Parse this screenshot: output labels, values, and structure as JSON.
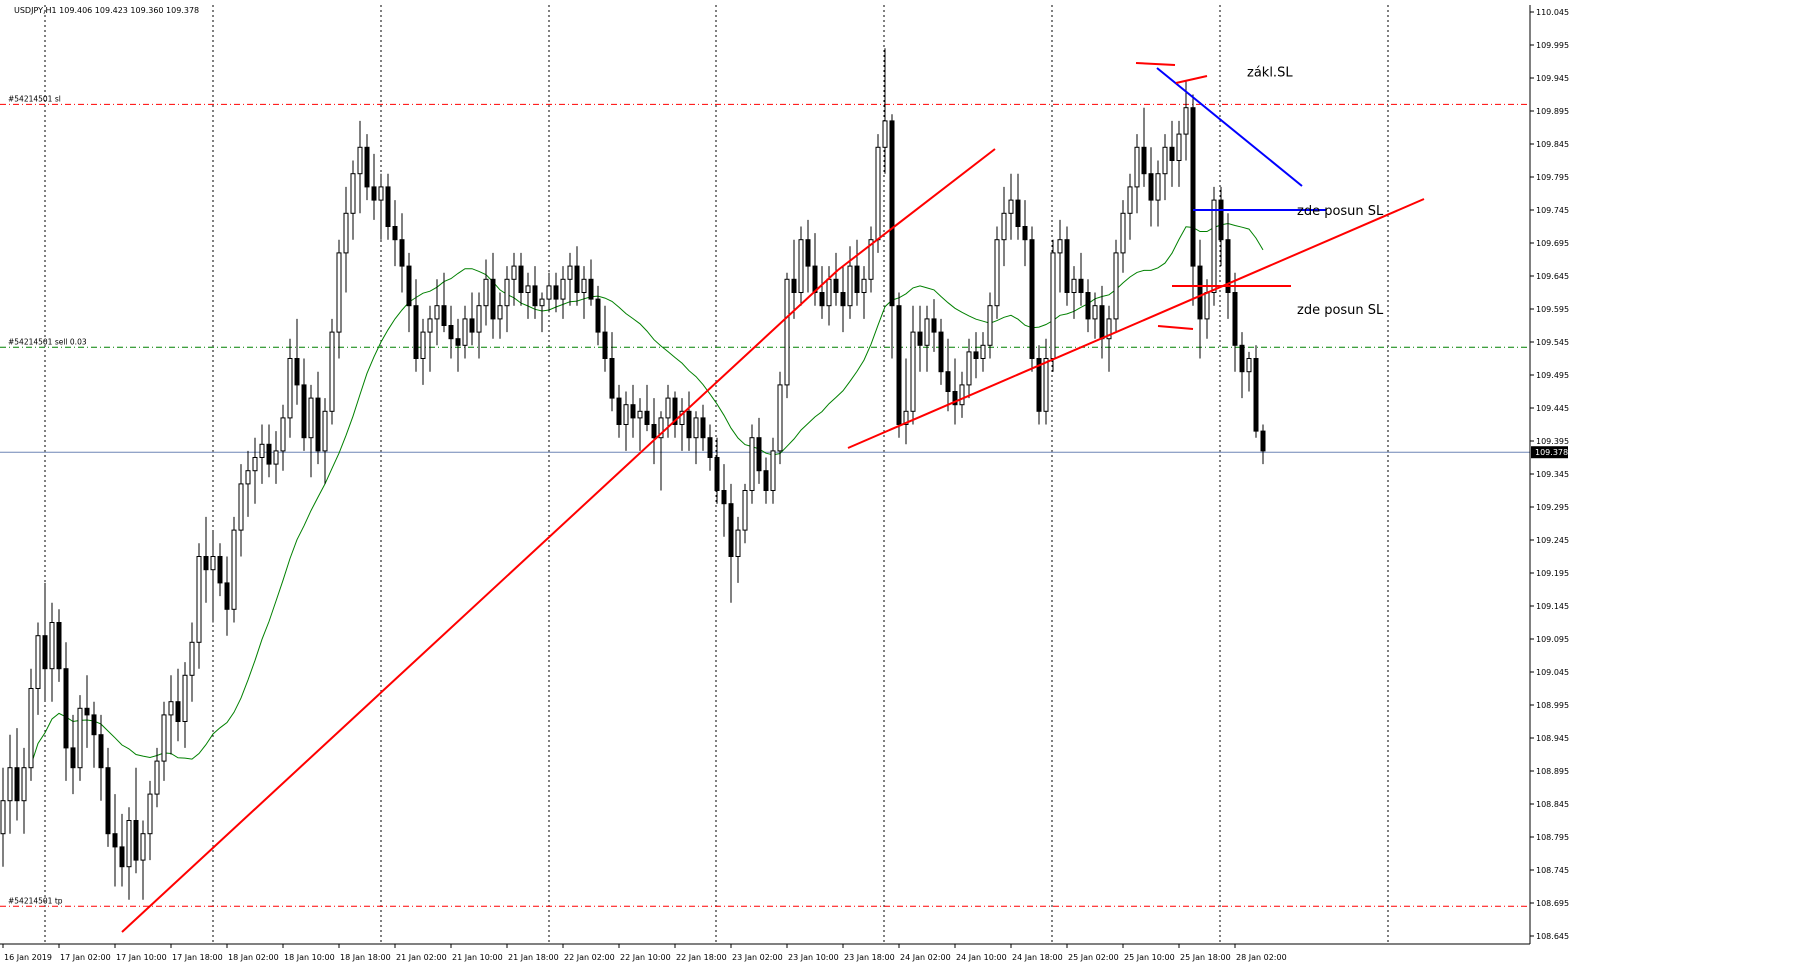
{
  "chart_data": {
    "type": "candlestick",
    "symbol_header": "USDJPY,H1  109.406 109.423 109.360 109.378",
    "ylim": [
      108.645,
      110.045
    ],
    "y_ticks": [
      "110.045",
      "109.995",
      "109.945",
      "109.895",
      "109.845",
      "109.795",
      "109.745",
      "109.695",
      "109.645",
      "109.595",
      "109.545",
      "109.495",
      "109.445",
      "109.395",
      "109.345",
      "109.295",
      "109.245",
      "109.195",
      "109.145",
      "109.095",
      "109.045",
      "108.995",
      "108.945",
      "108.895",
      "108.845",
      "108.795",
      "108.745",
      "108.695",
      "108.645"
    ],
    "current_price": "109.378",
    "x_tick_labels": [
      "16 Jan 2019",
      "17 Jan 02:00",
      "17 Jan 10:00",
      "17 Jan 18:00",
      "18 Jan 02:00",
      "18 Jan 10:00",
      "18 Jan 18:00",
      "21 Jan 02:00",
      "21 Jan 10:00",
      "21 Jan 18:00",
      "22 Jan 02:00",
      "22 Jan 10:00",
      "22 Jan 18:00",
      "23 Jan 02:00",
      "23 Jan 10:00",
      "23 Jan 18:00",
      "24 Jan 02:00",
      "24 Jan 10:00",
      "24 Jan 18:00",
      "25 Jan 02:00",
      "25 Jan 10:00",
      "25 Jan 18:00",
      "28 Jan 02:00"
    ],
    "order_levels": [
      {
        "label": "#54214501 sl",
        "price": 109.905,
        "color": "#ff0000"
      },
      {
        "label": "#54214501 sell 0.03",
        "price": 109.537,
        "color": "#008000"
      },
      {
        "label": "#54214501 tp",
        "price": 108.69,
        "color": "#ff0000"
      }
    ],
    "annotations": [
      {
        "text": "zákl.SL",
        "price": 109.955
      },
      {
        "text": "zde posun SL",
        "price": 109.745
      },
      {
        "text": "zde posun SL",
        "price": 109.595
      }
    ],
    "ohlc": [
      [
        108.8,
        108.9,
        108.75,
        108.85
      ],
      [
        108.85,
        108.95,
        108.8,
        108.9
      ],
      [
        108.9,
        108.96,
        108.82,
        108.85
      ],
      [
        108.85,
        108.93,
        108.8,
        108.9
      ],
      [
        108.9,
        109.05,
        108.88,
        109.02
      ],
      [
        109.02,
        109.12,
        108.98,
        109.1
      ],
      [
        109.1,
        109.18,
        109.0,
        109.05
      ],
      [
        109.05,
        109.15,
        109.0,
        109.12
      ],
      [
        109.12,
        109.14,
        109.03,
        109.05
      ],
      [
        109.05,
        109.09,
        108.88,
        108.93
      ],
      [
        108.93,
        108.98,
        108.86,
        108.9
      ],
      [
        108.9,
        109.01,
        108.88,
        108.99
      ],
      [
        108.99,
        109.04,
        108.93,
        108.98
      ],
      [
        108.98,
        109.0,
        108.9,
        108.95
      ],
      [
        108.95,
        108.98,
        108.85,
        108.9
      ],
      [
        108.9,
        108.93,
        108.78,
        108.8
      ],
      [
        108.8,
        108.86,
        108.72,
        108.78
      ],
      [
        108.78,
        108.83,
        108.72,
        108.75
      ],
      [
        108.75,
        108.84,
        108.7,
        108.82
      ],
      [
        108.82,
        108.9,
        108.74,
        108.76
      ],
      [
        108.76,
        108.82,
        108.7,
        108.8
      ],
      [
        108.8,
        108.88,
        108.76,
        108.86
      ],
      [
        108.86,
        108.93,
        108.84,
        108.91
      ],
      [
        108.91,
        109.0,
        108.88,
        108.98
      ],
      [
        108.98,
        109.04,
        108.92,
        109.0
      ],
      [
        109.0,
        109.05,
        108.94,
        108.97
      ],
      [
        108.97,
        109.06,
        108.93,
        109.04
      ],
      [
        109.04,
        109.12,
        109.0,
        109.09
      ],
      [
        109.09,
        109.24,
        109.05,
        109.22
      ],
      [
        109.22,
        109.28,
        109.15,
        109.2
      ],
      [
        109.2,
        109.26,
        109.12,
        109.22
      ],
      [
        109.22,
        109.24,
        109.16,
        109.18
      ],
      [
        109.18,
        109.22,
        109.1,
        109.14
      ],
      [
        109.14,
        109.28,
        109.12,
        109.26
      ],
      [
        109.26,
        109.36,
        109.22,
        109.33
      ],
      [
        109.33,
        109.38,
        109.28,
        109.35
      ],
      [
        109.35,
        109.4,
        109.3,
        109.37
      ],
      [
        109.37,
        109.42,
        109.33,
        109.39
      ],
      [
        109.39,
        109.42,
        109.34,
        109.36
      ],
      [
        109.36,
        109.41,
        109.33,
        109.38
      ],
      [
        109.38,
        109.45,
        109.35,
        109.43
      ],
      [
        109.43,
        109.55,
        109.4,
        109.52
      ],
      [
        109.52,
        109.58,
        109.45,
        109.48
      ],
      [
        109.48,
        109.52,
        109.38,
        109.4
      ],
      [
        109.4,
        109.48,
        109.34,
        109.46
      ],
      [
        109.46,
        109.5,
        109.36,
        109.38
      ],
      [
        109.38,
        109.46,
        109.33,
        109.44
      ],
      [
        109.44,
        109.58,
        109.42,
        109.56
      ],
      [
        109.56,
        109.7,
        109.52,
        109.68
      ],
      [
        109.68,
        109.78,
        109.62,
        109.74
      ],
      [
        109.74,
        109.82,
        109.7,
        109.8
      ],
      [
        109.8,
        109.88,
        109.74,
        109.84
      ],
      [
        109.84,
        109.86,
        109.76,
        109.78
      ],
      [
        109.78,
        109.83,
        109.73,
        109.76
      ],
      [
        109.76,
        109.8,
        109.7,
        109.78
      ],
      [
        109.78,
        109.8,
        109.7,
        109.72
      ],
      [
        109.72,
        109.76,
        109.66,
        109.7
      ],
      [
        109.7,
        109.74,
        109.62,
        109.66
      ],
      [
        109.66,
        109.68,
        109.56,
        109.6
      ],
      [
        109.6,
        109.64,
        109.5,
        109.52
      ],
      [
        109.52,
        109.58,
        109.48,
        109.56
      ],
      [
        109.56,
        109.6,
        109.5,
        109.58
      ],
      [
        109.58,
        109.64,
        109.54,
        109.6
      ],
      [
        109.6,
        109.65,
        109.56,
        109.57
      ],
      [
        109.57,
        109.6,
        109.52,
        109.55
      ],
      [
        109.55,
        109.58,
        109.5,
        109.54
      ],
      [
        109.54,
        109.6,
        109.52,
        109.58
      ],
      [
        109.58,
        109.62,
        109.54,
        109.56
      ],
      [
        109.56,
        109.62,
        109.52,
        109.6
      ],
      [
        109.6,
        109.67,
        109.57,
        109.64
      ],
      [
        109.64,
        109.68,
        109.55,
        109.58
      ],
      [
        109.58,
        109.62,
        109.55,
        109.6
      ],
      [
        109.6,
        109.66,
        109.56,
        109.64
      ],
      [
        109.64,
        109.68,
        109.6,
        109.66
      ],
      [
        109.66,
        109.68,
        109.6,
        109.62
      ],
      [
        109.62,
        109.65,
        109.58,
        109.63
      ],
      [
        109.63,
        109.66,
        109.58,
        109.6
      ],
      [
        109.6,
        109.62,
        109.56,
        109.61
      ],
      [
        109.61,
        109.65,
        109.59,
        109.63
      ],
      [
        109.63,
        109.65,
        109.59,
        109.61
      ],
      [
        109.61,
        109.66,
        109.58,
        109.64
      ],
      [
        109.64,
        109.68,
        109.6,
        109.66
      ],
      [
        109.66,
        109.69,
        109.6,
        109.62
      ],
      [
        109.62,
        109.66,
        109.58,
        109.64
      ],
      [
        109.64,
        109.67,
        109.6,
        109.61
      ],
      [
        109.61,
        109.63,
        109.54,
        109.56
      ],
      [
        109.56,
        109.6,
        109.5,
        109.52
      ],
      [
        109.52,
        109.56,
        109.44,
        109.46
      ],
      [
        109.46,
        109.48,
        109.4,
        109.42
      ],
      [
        109.42,
        109.47,
        109.38,
        109.45
      ],
      [
        109.45,
        109.48,
        109.4,
        109.43
      ],
      [
        109.43,
        109.46,
        109.38,
        109.44
      ],
      [
        109.44,
        109.48,
        109.41,
        109.42
      ],
      [
        109.42,
        109.46,
        109.36,
        109.4
      ],
      [
        109.4,
        109.44,
        109.32,
        109.43
      ],
      [
        109.43,
        109.48,
        109.4,
        109.46
      ],
      [
        109.46,
        109.47,
        109.4,
        109.42
      ],
      [
        109.42,
        109.46,
        109.38,
        109.44
      ],
      [
        109.44,
        109.47,
        109.38,
        109.4
      ],
      [
        109.4,
        109.44,
        109.36,
        109.43
      ],
      [
        109.43,
        109.45,
        109.38,
        109.4
      ],
      [
        109.4,
        109.42,
        109.35,
        109.37
      ],
      [
        109.37,
        109.4,
        109.3,
        109.32
      ],
      [
        109.32,
        109.36,
        109.25,
        109.3
      ],
      [
        109.3,
        109.33,
        109.15,
        109.22
      ],
      [
        109.22,
        109.28,
        109.18,
        109.26
      ],
      [
        109.26,
        109.33,
        109.24,
        109.32
      ],
      [
        109.32,
        109.42,
        109.3,
        109.4
      ],
      [
        109.4,
        109.43,
        109.33,
        109.35
      ],
      [
        109.35,
        109.37,
        109.3,
        109.32
      ],
      [
        109.32,
        109.4,
        109.3,
        109.38
      ],
      [
        109.38,
        109.5,
        109.36,
        109.48
      ],
      [
        109.48,
        109.65,
        109.46,
        109.64
      ],
      [
        109.64,
        109.7,
        109.58,
        109.62
      ],
      [
        109.62,
        109.72,
        109.6,
        109.7
      ],
      [
        109.7,
        109.73,
        109.62,
        109.66
      ],
      [
        109.66,
        109.71,
        109.6,
        109.62
      ],
      [
        109.62,
        109.66,
        109.58,
        109.6
      ],
      [
        109.6,
        109.66,
        109.57,
        109.64
      ],
      [
        109.64,
        109.68,
        109.6,
        109.62
      ],
      [
        109.62,
        109.66,
        109.56,
        109.6
      ],
      [
        109.6,
        109.69,
        109.58,
        109.66
      ],
      [
        109.66,
        109.7,
        109.6,
        109.62
      ],
      [
        109.62,
        109.66,
        109.58,
        109.64
      ],
      [
        109.64,
        109.72,
        109.62,
        109.7
      ],
      [
        109.7,
        109.86,
        109.68,
        109.84
      ],
      [
        109.84,
        109.99,
        109.8,
        109.88
      ],
      [
        109.88,
        109.89,
        109.52,
        109.6
      ],
      [
        109.6,
        109.62,
        109.4,
        109.42
      ],
      [
        109.42,
        109.52,
        109.39,
        109.44
      ],
      [
        109.44,
        109.6,
        109.42,
        109.56
      ],
      [
        109.56,
        109.6,
        109.5,
        109.54
      ],
      [
        109.54,
        109.6,
        109.5,
        109.58
      ],
      [
        109.58,
        109.61,
        109.53,
        109.56
      ],
      [
        109.56,
        109.58,
        109.48,
        109.5
      ],
      [
        109.5,
        109.55,
        109.44,
        109.47
      ],
      [
        109.47,
        109.52,
        109.42,
        109.45
      ],
      [
        109.45,
        109.5,
        109.43,
        109.48
      ],
      [
        109.48,
        109.55,
        109.46,
        109.53
      ],
      [
        109.53,
        109.56,
        109.49,
        109.52
      ],
      [
        109.52,
        109.56,
        109.5,
        109.54
      ],
      [
        109.54,
        109.62,
        109.52,
        109.6
      ],
      [
        109.6,
        109.72,
        109.58,
        109.7
      ],
      [
        109.7,
        109.78,
        109.66,
        109.74
      ],
      [
        109.74,
        109.8,
        109.7,
        109.76
      ],
      [
        109.76,
        109.8,
        109.7,
        109.72
      ],
      [
        109.72,
        109.76,
        109.66,
        109.7
      ],
      [
        109.7,
        109.72,
        109.5,
        109.52
      ],
      [
        109.52,
        109.54,
        109.42,
        109.44
      ],
      [
        109.44,
        109.55,
        109.42,
        109.52
      ],
      [
        109.52,
        109.7,
        109.5,
        109.68
      ],
      [
        109.68,
        109.73,
        109.62,
        109.7
      ],
      [
        109.7,
        109.72,
        109.6,
        109.62
      ],
      [
        109.62,
        109.66,
        109.58,
        109.64
      ],
      [
        109.64,
        109.68,
        109.6,
        109.62
      ],
      [
        109.62,
        109.64,
        109.56,
        109.58
      ],
      [
        109.58,
        109.62,
        109.55,
        109.6
      ],
      [
        109.6,
        109.63,
        109.52,
        109.55
      ],
      [
        109.55,
        109.6,
        109.5,
        109.58
      ],
      [
        109.58,
        109.7,
        109.56,
        109.68
      ],
      [
        109.68,
        109.76,
        109.65,
        109.74
      ],
      [
        109.74,
        109.8,
        109.7,
        109.78
      ],
      [
        109.78,
        109.86,
        109.74,
        109.84
      ],
      [
        109.84,
        109.9,
        109.78,
        109.8
      ],
      [
        109.8,
        109.84,
        109.72,
        109.76
      ],
      [
        109.76,
        109.82,
        109.72,
        109.8
      ],
      [
        109.8,
        109.86,
        109.76,
        109.84
      ],
      [
        109.84,
        109.88,
        109.78,
        109.82
      ],
      [
        109.82,
        109.88,
        109.78,
        109.86
      ],
      [
        109.86,
        109.94,
        109.82,
        109.9
      ],
      [
        109.9,
        109.92,
        109.6,
        109.66
      ],
      [
        109.66,
        109.7,
        109.52,
        109.58
      ],
      [
        109.58,
        109.64,
        109.55,
        109.62
      ],
      [
        109.62,
        109.78,
        109.6,
        109.76
      ],
      [
        109.76,
        109.78,
        109.66,
        109.7
      ],
      [
        109.7,
        109.74,
        109.58,
        109.62
      ],
      [
        109.62,
        109.65,
        109.5,
        109.54
      ],
      [
        109.54,
        109.56,
        109.46,
        109.5
      ],
      [
        109.5,
        109.53,
        109.47,
        109.52
      ],
      [
        109.52,
        109.54,
        109.4,
        109.41
      ],
      [
        109.41,
        109.42,
        109.36,
        109.38
      ]
    ]
  }
}
